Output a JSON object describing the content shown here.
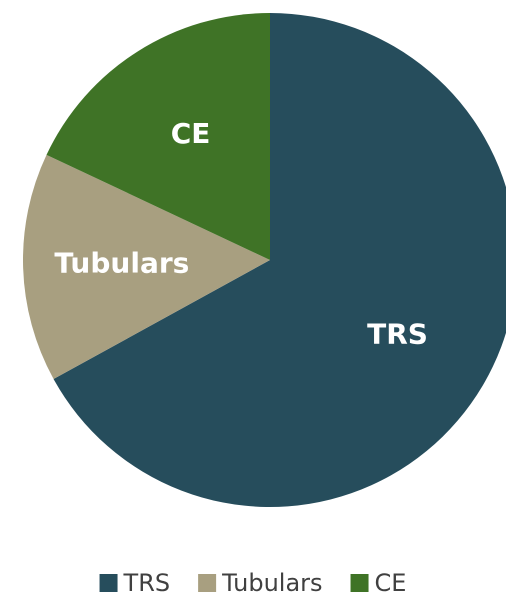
{
  "chart_data": {
    "type": "pie",
    "categories": [
      "TRS",
      "Tubulars",
      "CE"
    ],
    "values": [
      67,
      15,
      18
    ],
    "colors": [
      "#264d5c",
      "#a89f80",
      "#3f7326"
    ],
    "legend": "bottom"
  }
}
